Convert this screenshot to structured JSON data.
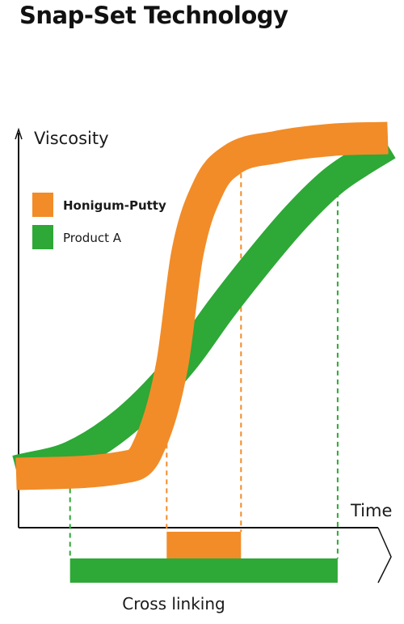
{
  "title": "Snap-Set Technology",
  "colors": {
    "orange": "#F28C28",
    "green": "#2EA836",
    "axis": "#111111"
  },
  "chart_data": {
    "type": "line",
    "title": "Snap-Set Technology",
    "xlabel": "Time",
    "ylabel": "Viscosity",
    "xlim": [
      0,
      100
    ],
    "ylim": [
      0,
      100
    ],
    "grid": false,
    "legend": "top-left",
    "series": [
      {
        "name": "Honigum-Putty",
        "color": "#F28C28",
        "x": [
          0,
          30,
          35,
          42,
          46,
          52,
          58,
          70,
          85,
          100
        ],
        "y": [
          5,
          7,
          11,
          35,
          65,
          84,
          91,
          94.5,
          96.5,
          97
        ]
      },
      {
        "name": "Product A",
        "color": "#2EA836",
        "x": [
          0,
          15,
          30,
          45,
          55,
          65,
          75,
          85,
          92,
          100
        ],
        "y": [
          6,
          10,
          20,
          36,
          50,
          63,
          75,
          85,
          90,
          95
        ]
      }
    ],
    "crosslinking": {
      "label": "Cross linking",
      "bars": [
        {
          "series": "Honigum-Putty",
          "color": "#F28C28",
          "start": 40.5,
          "end": 60.5
        },
        {
          "series": "Product A",
          "color": "#2EA836",
          "start": 14.5,
          "end": 86.5
        }
      ]
    }
  }
}
